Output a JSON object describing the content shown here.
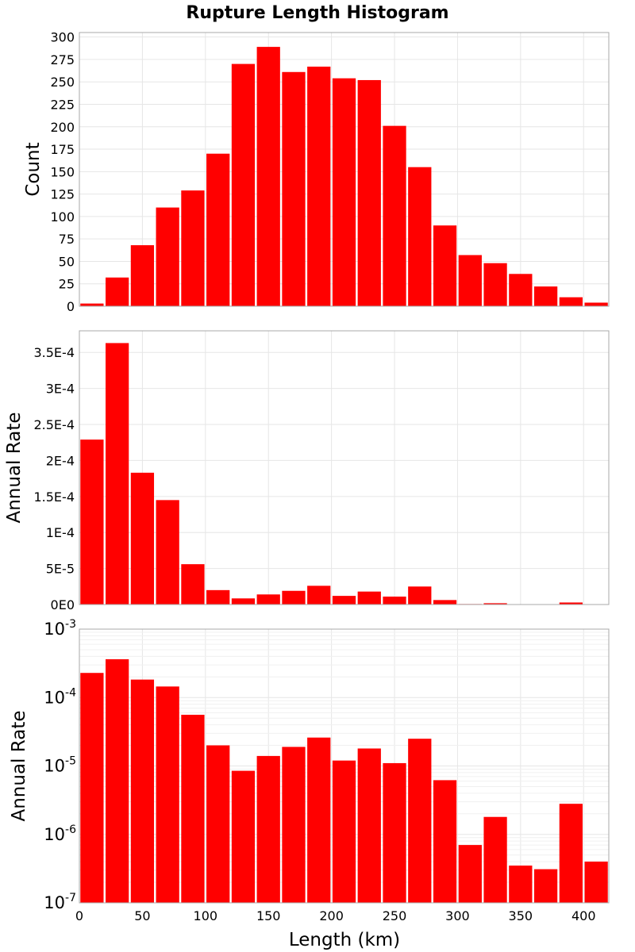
{
  "chart_data": {
    "title": "Rupture Length Histogram",
    "xlabel": "Length (km)",
    "xlim": [
      0,
      420
    ],
    "xticks": [
      "0",
      "50",
      "100",
      "150",
      "200",
      "250",
      "300",
      "350",
      "400"
    ],
    "bin_width": 20,
    "bin_centers": [
      10,
      30,
      50,
      70,
      90,
      110,
      130,
      150,
      170,
      190,
      210,
      230,
      250,
      270,
      290,
      310,
      330,
      350,
      370,
      390,
      410
    ],
    "bar_color": "#ff0000",
    "panels": [
      {
        "type": "bar",
        "ylabel": "Count",
        "yscale": "linear",
        "ylim": [
          0,
          305
        ],
        "yticks": [
          "0",
          "25",
          "50",
          "75",
          "100",
          "125",
          "150",
          "175",
          "200",
          "225",
          "250",
          "275",
          "300"
        ],
        "values": [
          3,
          32,
          68,
          110,
          129,
          170,
          270,
          289,
          261,
          267,
          254,
          252,
          201,
          155,
          90,
          57,
          48,
          36,
          22,
          10,
          4
        ]
      },
      {
        "type": "bar",
        "ylabel": "Annual Rate",
        "yscale": "linear",
        "ylim": [
          0,
          0.00038
        ],
        "yticks": [
          "0E0",
          "5E-5",
          "1E-4",
          "1.5E-4",
          "2E-4",
          "2.5E-4",
          "3E-4",
          "3.5E-4"
        ],
        "values": [
          0.000229,
          0.000363,
          0.000183,
          0.000145,
          5.6e-05,
          2e-05,
          8.5e-06,
          1.4e-05,
          1.9e-05,
          2.6e-05,
          1.2e-05,
          1.8e-05,
          1.1e-05,
          2.5e-05,
          6.2e-06,
          7e-07,
          1.8e-06,
          3.5e-07,
          3.1e-07,
          2.8e-06,
          4e-07
        ]
      },
      {
        "type": "bar",
        "ylabel": "Annual Rate",
        "yscale": "log",
        "ylim": [
          1e-07,
          0.001
        ],
        "yticks": [
          {
            "base": "10",
            "exp": "-7"
          },
          {
            "base": "10",
            "exp": "-6"
          },
          {
            "base": "10",
            "exp": "-5"
          },
          {
            "base": "10",
            "exp": "-4"
          },
          {
            "base": "10",
            "exp": "-3"
          }
        ],
        "values": [
          0.000229,
          0.000363,
          0.000183,
          0.000145,
          5.6e-05,
          2e-05,
          8.5e-06,
          1.4e-05,
          1.9e-05,
          2.6e-05,
          1.2e-05,
          1.8e-05,
          1.1e-05,
          2.5e-05,
          6.2e-06,
          7e-07,
          1.8e-06,
          3.5e-07,
          3.1e-07,
          2.8e-06,
          4e-07
        ]
      }
    ]
  }
}
